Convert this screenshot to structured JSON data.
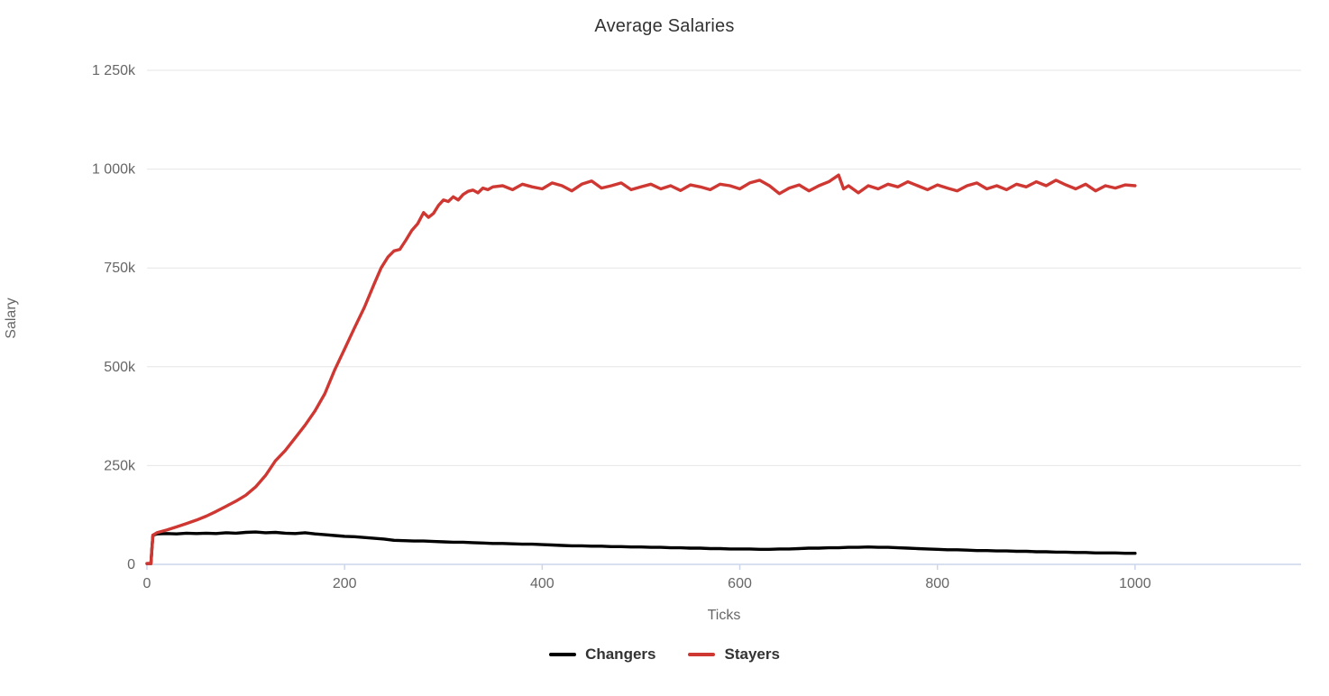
{
  "title": "Average Salaries",
  "colors": {
    "background": "#ffffff",
    "title_text": "#333333",
    "axis_label_text": "#666666",
    "axis_title_text": "#666666",
    "legend_text": "#333333",
    "gridline": "#e6e6e6",
    "axis_line": "#ccd6eb",
    "changers_line": "#000000",
    "stayers_line": "#cf3832"
  },
  "legend": {
    "items": [
      {
        "label": "Changers",
        "color": "#000000"
      },
      {
        "label": "Stayers",
        "color": "#cf3832"
      }
    ]
  },
  "chart_data": {
    "type": "line",
    "title": "Average Salaries",
    "xlabel": "Ticks",
    "ylabel": "Salary",
    "xlim": [
      0,
      1168
    ],
    "ylim": [
      0,
      1250
    ],
    "y_unit": "thousands (k)",
    "grid": "horizontal-only",
    "legend_position": "bottom-center",
    "x_ticks": [
      0,
      200,
      400,
      600,
      800,
      1000
    ],
    "x_tick_labels": [
      "0",
      "200",
      "400",
      "600",
      "800",
      "1000"
    ],
    "y_ticks": [
      0,
      250,
      500,
      750,
      1000,
      1250
    ],
    "y_tick_labels": [
      "0",
      "250k",
      "500k",
      "750k",
      "1 000k",
      "1 250k"
    ],
    "series": [
      {
        "name": "Changers",
        "color": "#000000",
        "points": [
          [
            0,
            2
          ],
          [
            4,
            2
          ],
          [
            5,
            40
          ],
          [
            6,
            74
          ],
          [
            10,
            77
          ],
          [
            20,
            78
          ],
          [
            30,
            77
          ],
          [
            40,
            79
          ],
          [
            50,
            78
          ],
          [
            60,
            79
          ],
          [
            70,
            78
          ],
          [
            80,
            80
          ],
          [
            90,
            79
          ],
          [
            100,
            81
          ],
          [
            110,
            82
          ],
          [
            120,
            80
          ],
          [
            130,
            81
          ],
          [
            140,
            79
          ],
          [
            150,
            78
          ],
          [
            160,
            80
          ],
          [
            170,
            77
          ],
          [
            180,
            75
          ],
          [
            190,
            73
          ],
          [
            200,
            71
          ],
          [
            210,
            70
          ],
          [
            220,
            68
          ],
          [
            230,
            66
          ],
          [
            240,
            64
          ],
          [
            250,
            61
          ],
          [
            260,
            60
          ],
          [
            270,
            59
          ],
          [
            280,
            59
          ],
          [
            290,
            58
          ],
          [
            300,
            57
          ],
          [
            310,
            56
          ],
          [
            320,
            56
          ],
          [
            330,
            55
          ],
          [
            340,
            54
          ],
          [
            350,
            53
          ],
          [
            360,
            53
          ],
          [
            370,
            52
          ],
          [
            380,
            51
          ],
          [
            390,
            51
          ],
          [
            400,
            50
          ],
          [
            410,
            49
          ],
          [
            420,
            48
          ],
          [
            430,
            47
          ],
          [
            440,
            47
          ],
          [
            450,
            46
          ],
          [
            460,
            46
          ],
          [
            470,
            45
          ],
          [
            480,
            45
          ],
          [
            490,
            44
          ],
          [
            500,
            44
          ],
          [
            510,
            43
          ],
          [
            520,
            43
          ],
          [
            530,
            42
          ],
          [
            540,
            42
          ],
          [
            550,
            41
          ],
          [
            560,
            41
          ],
          [
            570,
            40
          ],
          [
            580,
            40
          ],
          [
            590,
            39
          ],
          [
            600,
            39
          ],
          [
            610,
            39
          ],
          [
            620,
            38
          ],
          [
            630,
            38
          ],
          [
            640,
            39
          ],
          [
            650,
            39
          ],
          [
            660,
            40
          ],
          [
            670,
            41
          ],
          [
            680,
            41
          ],
          [
            690,
            42
          ],
          [
            700,
            42
          ],
          [
            710,
            43
          ],
          [
            720,
            43
          ],
          [
            730,
            44
          ],
          [
            740,
            43
          ],
          [
            750,
            43
          ],
          [
            760,
            42
          ],
          [
            770,
            41
          ],
          [
            780,
            40
          ],
          [
            790,
            39
          ],
          [
            800,
            38
          ],
          [
            810,
            37
          ],
          [
            820,
            37
          ],
          [
            830,
            36
          ],
          [
            840,
            35
          ],
          [
            850,
            35
          ],
          [
            860,
            34
          ],
          [
            870,
            34
          ],
          [
            880,
            33
          ],
          [
            890,
            33
          ],
          [
            900,
            32
          ],
          [
            910,
            32
          ],
          [
            920,
            31
          ],
          [
            930,
            31
          ],
          [
            940,
            30
          ],
          [
            950,
            30
          ],
          [
            960,
            29
          ],
          [
            970,
            29
          ],
          [
            980,
            29
          ],
          [
            990,
            28
          ],
          [
            1000,
            28
          ]
        ]
      },
      {
        "name": "Stayers",
        "color": "#cf3832",
        "points": [
          [
            0,
            2
          ],
          [
            4,
            2
          ],
          [
            5,
            40
          ],
          [
            6,
            74
          ],
          [
            10,
            80
          ],
          [
            20,
            87
          ],
          [
            30,
            95
          ],
          [
            40,
            103
          ],
          [
            50,
            112
          ],
          [
            60,
            122
          ],
          [
            70,
            134
          ],
          [
            80,
            147
          ],
          [
            90,
            160
          ],
          [
            100,
            175
          ],
          [
            110,
            196
          ],
          [
            120,
            225
          ],
          [
            130,
            262
          ],
          [
            140,
            288
          ],
          [
            150,
            320
          ],
          [
            160,
            352
          ],
          [
            170,
            388
          ],
          [
            180,
            432
          ],
          [
            190,
            492
          ],
          [
            200,
            545
          ],
          [
            210,
            598
          ],
          [
            220,
            650
          ],
          [
            230,
            710
          ],
          [
            237,
            750
          ],
          [
            244,
            778
          ],
          [
            250,
            793
          ],
          [
            256,
            797
          ],
          [
            262,
            820
          ],
          [
            268,
            845
          ],
          [
            274,
            862
          ],
          [
            280,
            890
          ],
          [
            285,
            878
          ],
          [
            290,
            888
          ],
          [
            295,
            908
          ],
          [
            300,
            922
          ],
          [
            305,
            918
          ],
          [
            310,
            930
          ],
          [
            315,
            922
          ],
          [
            320,
            936
          ],
          [
            325,
            944
          ],
          [
            330,
            947
          ],
          [
            335,
            940
          ],
          [
            340,
            952
          ],
          [
            345,
            948
          ],
          [
            350,
            955
          ],
          [
            360,
            958
          ],
          [
            370,
            948
          ],
          [
            380,
            962
          ],
          [
            390,
            955
          ],
          [
            400,
            950
          ],
          [
            410,
            965
          ],
          [
            420,
            958
          ],
          [
            430,
            945
          ],
          [
            440,
            962
          ],
          [
            450,
            970
          ],
          [
            460,
            952
          ],
          [
            470,
            958
          ],
          [
            480,
            965
          ],
          [
            490,
            948
          ],
          [
            500,
            955
          ],
          [
            510,
            962
          ],
          [
            520,
            950
          ],
          [
            530,
            958
          ],
          [
            540,
            946
          ],
          [
            550,
            960
          ],
          [
            560,
            955
          ],
          [
            570,
            948
          ],
          [
            580,
            962
          ],
          [
            590,
            958
          ],
          [
            600,
            950
          ],
          [
            610,
            965
          ],
          [
            620,
            972
          ],
          [
            630,
            958
          ],
          [
            640,
            938
          ],
          [
            650,
            952
          ],
          [
            660,
            960
          ],
          [
            670,
            945
          ],
          [
            680,
            958
          ],
          [
            690,
            968
          ],
          [
            700,
            985
          ],
          [
            705,
            950
          ],
          [
            710,
            958
          ],
          [
            720,
            940
          ],
          [
            730,
            958
          ],
          [
            740,
            950
          ],
          [
            750,
            962
          ],
          [
            760,
            955
          ],
          [
            770,
            968
          ],
          [
            780,
            958
          ],
          [
            790,
            948
          ],
          [
            800,
            960
          ],
          [
            810,
            952
          ],
          [
            820,
            945
          ],
          [
            830,
            958
          ],
          [
            840,
            965
          ],
          [
            850,
            950
          ],
          [
            860,
            958
          ],
          [
            870,
            948
          ],
          [
            880,
            962
          ],
          [
            890,
            955
          ],
          [
            900,
            968
          ],
          [
            910,
            958
          ],
          [
            920,
            972
          ],
          [
            930,
            960
          ],
          [
            940,
            950
          ],
          [
            950,
            962
          ],
          [
            960,
            945
          ],
          [
            970,
            958
          ],
          [
            980,
            952
          ],
          [
            990,
            960
          ],
          [
            1000,
            958
          ]
        ]
      }
    ]
  }
}
